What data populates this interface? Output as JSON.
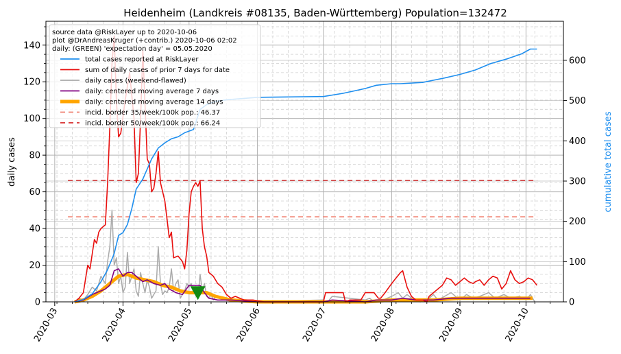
{
  "chart_data": {
    "type": "line",
    "title": "Heidenheim (Landkreis #08135, Baden-Württemberg) Population=132472",
    "ylabel_left": "daily cases",
    "ylabel_right": "cumulative total cases",
    "ylim_left": [
      0,
      153
    ],
    "ylim_right": [
      0,
      697
    ],
    "xlim": [
      "2020-02-26",
      "2020-10-18"
    ],
    "x_ticks": [
      "2020-03",
      "2020-04",
      "2020-05",
      "2020-06",
      "2020-07",
      "2020-08",
      "2020-09",
      "2020-10"
    ],
    "y_ticks_left": [
      0,
      20,
      40,
      60,
      80,
      100,
      120,
      140
    ],
    "y_ticks_right": [
      0,
      100,
      200,
      300,
      400,
      500,
      600
    ],
    "grid": true,
    "legend_position": "top-left",
    "info_lines": [
      "source data @RiskLayer up to 2020-10-06",
      "plot @DrAndreasKruger (+contrib.) 2020-10-06 02:02",
      "daily: (GREEN) 'expectation day' = 05.05.2020"
    ],
    "expectation_day": "2020-05-05",
    "colors": {
      "total": "#1f8fef",
      "sum7": "#e8100f",
      "daily": "#aaaaaa",
      "ma7": "#800080",
      "ma14": "#ffa500",
      "border35": "#f08070",
      "border50": "#d62728",
      "expectation": "#138a13",
      "right_axis_label": "#1f8fef"
    },
    "series": [
      {
        "name": "total cases reported at RiskLayer",
        "axis": "right",
        "x": [
          "2020-03-10",
          "2020-03-14",
          "2020-03-18",
          "2020-03-22",
          "2020-03-25",
          "2020-03-28",
          "2020-03-30",
          "2020-04-01",
          "2020-04-03",
          "2020-04-05",
          "2020-04-07",
          "2020-04-10",
          "2020-04-14",
          "2020-04-17",
          "2020-04-20",
          "2020-04-23",
          "2020-04-26",
          "2020-04-29",
          "2020-05-03",
          "2020-05-06",
          "2020-05-09",
          "2020-05-13",
          "2020-05-18",
          "2020-05-25",
          "2020-06-01",
          "2020-06-15",
          "2020-07-01",
          "2020-07-10",
          "2020-07-20",
          "2020-07-25",
          "2020-08-01",
          "2020-08-05",
          "2020-08-15",
          "2020-08-25",
          "2020-09-01",
          "2020-09-08",
          "2020-09-15",
          "2020-09-22",
          "2020-09-29",
          "2020-10-03",
          "2020-10-06"
        ],
        "values": [
          0,
          6,
          20,
          50,
          80,
          120,
          165,
          172,
          192,
          232,
          280,
          305,
          355,
          382,
          395,
          405,
          410,
          420,
          428,
          478,
          490,
          498,
          502,
          505,
          508,
          509,
          510,
          518,
          530,
          538,
          542,
          542,
          545,
          556,
          565,
          576,
          592,
          603,
          616,
          628,
          628
        ]
      },
      {
        "name": "sum of daily cases of prior 7 days for date",
        "axis": "left",
        "x": [
          "2020-03-10",
          "2020-03-12",
          "2020-03-14",
          "2020-03-16",
          "2020-03-17",
          "2020-03-18",
          "2020-03-19",
          "2020-03-20",
          "2020-03-21",
          "2020-03-22",
          "2020-03-23",
          "2020-03-24",
          "2020-03-25",
          "2020-03-26",
          "2020-03-27",
          "2020-03-28",
          "2020-03-29",
          "2020-03-30",
          "2020-03-31",
          "2020-04-02",
          "2020-04-04",
          "2020-04-06",
          "2020-04-07",
          "2020-04-08",
          "2020-04-09",
          "2020-04-10",
          "2020-04-12",
          "2020-04-13",
          "2020-04-14",
          "2020-04-15",
          "2020-04-16",
          "2020-04-17",
          "2020-04-18",
          "2020-04-20",
          "2020-04-22",
          "2020-04-23",
          "2020-04-24",
          "2020-04-26",
          "2020-04-28",
          "2020-04-29",
          "2020-04-30",
          "2020-05-01",
          "2020-05-02",
          "2020-05-03",
          "2020-05-04",
          "2020-05-05",
          "2020-05-06",
          "2020-05-07",
          "2020-05-08",
          "2020-05-09",
          "2020-05-10",
          "2020-05-11",
          "2020-05-12",
          "2020-05-13",
          "2020-05-14",
          "2020-05-16",
          "2020-05-18",
          "2020-05-20",
          "2020-05-22",
          "2020-05-26",
          "2020-05-30",
          "2020-06-04",
          "2020-06-10",
          "2020-06-20",
          "2020-07-01",
          "2020-07-02",
          "2020-07-04",
          "2020-07-10",
          "2020-07-11",
          "2020-07-13",
          "2020-07-18",
          "2020-07-20",
          "2020-07-22",
          "2020-07-24",
          "2020-07-26",
          "2020-07-27",
          "2020-07-29",
          "2020-08-01",
          "2020-08-03",
          "2020-08-05",
          "2020-08-06",
          "2020-08-08",
          "2020-08-10",
          "2020-08-12",
          "2020-08-15",
          "2020-08-17",
          "2020-08-18",
          "2020-08-20",
          "2020-08-22",
          "2020-08-24",
          "2020-08-26",
          "2020-08-28",
          "2020-08-30",
          "2020-09-01",
          "2020-09-03",
          "2020-09-05",
          "2020-09-07",
          "2020-09-08",
          "2020-09-10",
          "2020-09-12",
          "2020-09-14",
          "2020-09-16",
          "2020-09-18",
          "2020-09-20",
          "2020-09-22",
          "2020-09-24",
          "2020-09-26",
          "2020-09-28",
          "2020-09-30",
          "2020-10-02",
          "2020-10-04",
          "2020-10-06"
        ],
        "values": [
          0,
          2,
          5,
          20,
          18,
          26,
          34,
          32,
          38,
          40,
          41,
          42,
          65,
          95,
          130,
          145,
          110,
          90,
          92,
          110,
          125,
          100,
          65,
          70,
          100,
          137,
          78,
          75,
          60,
          62,
          70,
          82,
          65,
          55,
          35,
          38,
          24,
          25,
          22,
          18,
          28,
          48,
          60,
          63,
          65,
          63,
          66,
          40,
          30,
          25,
          16,
          15,
          14,
          12,
          10,
          8,
          4,
          2,
          3,
          1,
          1,
          0,
          0,
          0,
          0,
          5,
          5,
          5,
          0,
          1,
          1,
          5,
          5,
          5,
          2,
          2,
          5,
          10,
          13,
          16,
          17,
          8,
          3,
          1,
          1,
          0,
          3,
          5,
          7,
          9,
          13,
          12,
          9,
          11,
          13,
          11,
          10,
          11,
          12,
          9,
          12,
          14,
          13,
          7,
          10,
          17,
          12,
          10,
          11,
          13,
          12,
          9
        ]
      },
      {
        "name": "daily cases (weekend-flawed)",
        "axis": "left",
        "x": [
          "2020-03-10",
          "2020-03-12",
          "2020-03-14",
          "2020-03-16",
          "2020-03-18",
          "2020-03-20",
          "2020-03-22",
          "2020-03-24",
          "2020-03-25",
          "2020-03-26",
          "2020-03-27",
          "2020-03-28",
          "2020-03-29",
          "2020-03-30",
          "2020-03-31",
          "2020-04-01",
          "2020-04-02",
          "2020-04-03",
          "2020-04-04",
          "2020-04-05",
          "2020-04-06",
          "2020-04-07",
          "2020-04-08",
          "2020-04-09",
          "2020-04-10",
          "2020-04-11",
          "2020-04-12",
          "2020-04-13",
          "2020-04-14",
          "2020-04-15",
          "2020-04-16",
          "2020-04-17",
          "2020-04-18",
          "2020-04-19",
          "2020-04-20",
          "2020-04-21",
          "2020-04-22",
          "2020-04-23",
          "2020-04-24",
          "2020-04-25",
          "2020-04-26",
          "2020-04-27",
          "2020-04-28",
          "2020-04-29",
          "2020-04-30",
          "2020-05-01",
          "2020-05-02",
          "2020-05-03",
          "2020-05-04",
          "2020-05-05",
          "2020-05-06",
          "2020-05-07",
          "2020-05-08",
          "2020-05-09",
          "2020-05-10",
          "2020-05-11",
          "2020-05-12",
          "2020-05-13",
          "2020-05-15",
          "2020-05-20",
          "2020-05-30",
          "2020-07-01",
          "2020-07-03",
          "2020-07-05",
          "2020-07-20",
          "2020-07-22",
          "2020-07-24",
          "2020-07-28",
          "2020-08-01",
          "2020-08-04",
          "2020-08-06",
          "2020-08-08",
          "2020-08-11",
          "2020-08-14",
          "2020-08-18",
          "2020-08-20",
          "2020-08-22",
          "2020-08-25",
          "2020-08-28",
          "2020-09-01",
          "2020-09-04",
          "2020-09-07",
          "2020-09-10",
          "2020-09-14",
          "2020-09-17",
          "2020-09-21",
          "2020-09-24",
          "2020-09-28",
          "2020-10-01",
          "2020-10-03",
          "2020-10-05"
        ],
        "values": [
          0,
          2,
          1,
          4,
          8,
          6,
          14,
          10,
          22,
          30,
          50,
          20,
          24,
          10,
          14,
          5,
          8,
          27,
          10,
          14,
          18,
          6,
          3,
          16,
          10,
          5,
          12,
          8,
          2,
          4,
          6,
          30,
          10,
          4,
          6,
          5,
          8,
          18,
          6,
          10,
          12,
          2,
          4,
          6,
          10,
          8,
          10,
          5,
          4,
          2,
          15,
          6,
          10,
          3,
          2,
          4,
          1,
          3,
          2,
          1,
          0,
          1,
          0,
          3,
          1,
          2,
          0,
          1,
          3,
          5,
          2,
          4,
          1,
          0,
          2,
          4,
          1,
          3,
          5,
          1,
          4,
          2,
          3,
          5,
          2,
          4,
          2,
          3,
          1,
          4,
          0
        ]
      },
      {
        "name": "daily: centered moving average 7 days",
        "axis": "left",
        "x": [
          "2020-03-10",
          "2020-03-14",
          "2020-03-18",
          "2020-03-22",
          "2020-03-24",
          "2020-03-26",
          "2020-03-28",
          "2020-03-30",
          "2020-04-01",
          "2020-04-03",
          "2020-04-05",
          "2020-04-08",
          "2020-04-10",
          "2020-04-12",
          "2020-04-15",
          "2020-04-18",
          "2020-04-20",
          "2020-04-22",
          "2020-04-25",
          "2020-04-28",
          "2020-05-01",
          "2020-05-04",
          "2020-05-06",
          "2020-05-08",
          "2020-05-10",
          "2020-05-14",
          "2020-05-20",
          "2020-06-01",
          "2020-07-01",
          "2020-07-05",
          "2020-07-20",
          "2020-07-25",
          "2020-08-01",
          "2020-08-06",
          "2020-08-12",
          "2020-08-20",
          "2020-08-28",
          "2020-09-05",
          "2020-09-15",
          "2020-09-25",
          "2020-10-03"
        ],
        "values": [
          0,
          1,
          4,
          6,
          7,
          9,
          17,
          18,
          14,
          16,
          16,
          13,
          11,
          12,
          10,
          9,
          10,
          7,
          5,
          4,
          9,
          9,
          9,
          5,
          2,
          1,
          1,
          0,
          0,
          1,
          0,
          1,
          1,
          2,
          1,
          1,
          2,
          2,
          2,
          2,
          2
        ]
      },
      {
        "name": "daily: centered moving average 14 days",
        "axis": "left",
        "x": [
          "2020-03-10",
          "2020-03-14",
          "2020-03-18",
          "2020-03-22",
          "2020-03-26",
          "2020-03-30",
          "2020-04-03",
          "2020-04-07",
          "2020-04-11",
          "2020-04-15",
          "2020-04-19",
          "2020-04-23",
          "2020-04-27",
          "2020-05-01",
          "2020-05-05",
          "2020-05-09",
          "2020-05-13",
          "2020-05-20",
          "2020-06-01",
          "2020-07-01",
          "2020-07-20",
          "2020-08-01",
          "2020-08-10",
          "2020-08-20",
          "2020-09-01",
          "2020-09-15",
          "2020-10-01",
          "2020-10-04"
        ],
        "values": [
          0,
          1,
          3,
          6,
          10,
          14,
          15,
          13,
          12,
          11,
          9,
          8,
          6,
          5,
          5,
          5,
          3,
          1,
          0,
          0,
          0,
          1,
          1,
          1,
          2,
          2,
          2,
          2
        ]
      },
      {
        "name": "incid. border 35/week/100k pop.: 46.37",
        "axis": "left",
        "x": [
          "2020-03-07",
          "2020-10-06"
        ],
        "values": [
          46.37,
          46.37
        ]
      },
      {
        "name": "incid. border 50/week/100k pop.: 66.24",
        "axis": "left",
        "x": [
          "2020-03-07",
          "2020-10-06"
        ],
        "values": [
          66.24,
          66.24
        ]
      }
    ]
  }
}
